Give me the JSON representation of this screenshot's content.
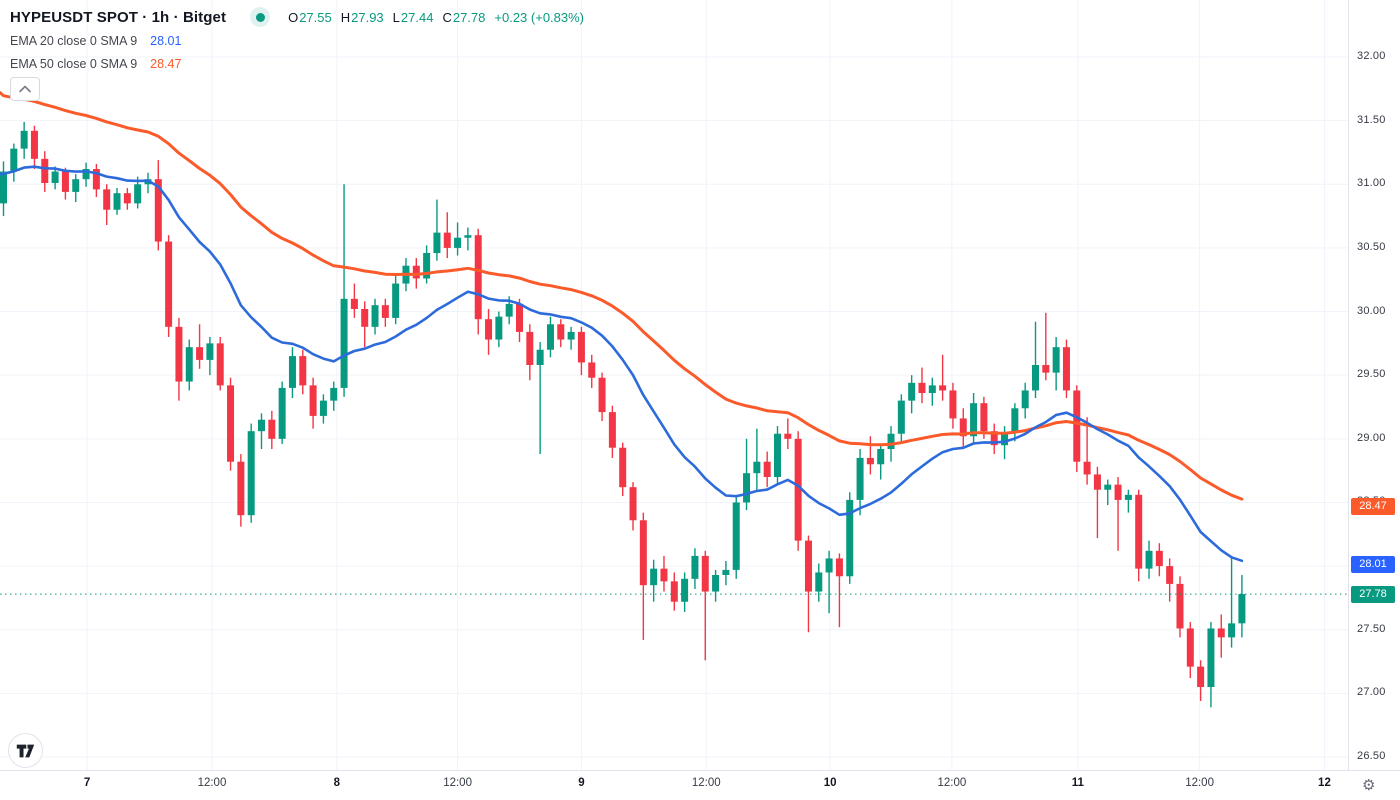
{
  "header": {
    "title": "HYPEUSDT SPOT · 1h · Bitget",
    "ohlc": {
      "o_label": "O",
      "o": "27.55",
      "h_label": "H",
      "h": "27.93",
      "l_label": "L",
      "l": "27.44",
      "c_label": "C",
      "c": "27.78",
      "change": "+0.23 (+0.83%)"
    }
  },
  "indicators": [
    {
      "label": "EMA 20 close 0 SMA 9",
      "value": "28.01",
      "color": "#2962ff"
    },
    {
      "label": "EMA 50 close 0 SMA 9",
      "value": "28.47",
      "color": "#fb5a2a"
    }
  ],
  "colors": {
    "up": "#089981",
    "down": "#f23645",
    "ema_fast": "#2d6bdb",
    "ema_slow": "#fb5a2a",
    "grid": "#f0f3fa",
    "axis_border": "#e0e3eb",
    "last_price": "#089981",
    "tag_fast": "#2962ff",
    "tag_slow": "#fb5a2a"
  },
  "price_axis": {
    "labels": [
      "32.00",
      "31.50",
      "31.00",
      "30.50",
      "30.00",
      "29.50",
      "29.00",
      "28.50",
      "28.00",
      "27.50",
      "27.00",
      "26.50"
    ],
    "tags": [
      {
        "text": "28.47",
        "price": 28.47,
        "color": "#fb5a2a",
        "name": "ema50-price-tag"
      },
      {
        "text": "28.01",
        "price": 28.01,
        "color": "#2962ff",
        "name": "ema20-price-tag"
      },
      {
        "text": "27.78",
        "price": 27.78,
        "color": "#089981",
        "name": "last-price-tag"
      }
    ]
  },
  "time_axis": [
    {
      "label": "7",
      "index": 8.1,
      "major": true
    },
    {
      "label": "12:00",
      "index": 20.2,
      "major": false
    },
    {
      "label": "8",
      "index": 32.3,
      "major": true
    },
    {
      "label": "12:00",
      "index": 44.0,
      "major": false
    },
    {
      "label": "9",
      "index": 56.0,
      "major": true
    },
    {
      "label": "12:00",
      "index": 68.1,
      "major": false
    },
    {
      "label": "10",
      "index": 80.1,
      "major": true
    },
    {
      "label": "12:00",
      "index": 91.9,
      "major": false
    },
    {
      "label": "11",
      "index": 104.1,
      "major": true
    },
    {
      "label": "12:00",
      "index": 115.9,
      "major": false
    },
    {
      "label": "12",
      "index": 128.0,
      "major": true
    }
  ],
  "chart_data": {
    "type": "candlestick",
    "symbol": "HYPEUSDT",
    "market": "SPOT",
    "interval": "1h",
    "exchange": "Bitget",
    "ylim": [
      26.5,
      32.0
    ],
    "grid": true,
    "last_price": 27.78,
    "last_candle_ohlc": {
      "open": 27.55,
      "high": 27.93,
      "low": 27.44,
      "close": 27.78
    },
    "indicators": [
      {
        "name": "EMA",
        "length": 20,
        "source": "close",
        "offset": 0,
        "smoothing": "SMA 9",
        "current": 28.01,
        "start_value": 31.08
      },
      {
        "name": "EMA",
        "length": 50,
        "source": "close",
        "offset": 0,
        "smoothing": "SMA 9",
        "current": 28.47,
        "start_value": 31.72
      }
    ],
    "candles": [
      [
        30.85,
        31.18,
        30.75,
        31.1
      ],
      [
        31.1,
        31.32,
        31.02,
        31.28
      ],
      [
        31.28,
        31.49,
        31.2,
        31.42
      ],
      [
        31.42,
        31.46,
        31.12,
        31.2
      ],
      [
        31.2,
        31.26,
        30.94,
        31.01
      ],
      [
        31.01,
        31.14,
        30.96,
        31.1
      ],
      [
        31.1,
        31.13,
        30.88,
        30.94
      ],
      [
        30.94,
        31.08,
        30.86,
        31.04
      ],
      [
        31.04,
        31.17,
        30.98,
        31.12
      ],
      [
        31.12,
        31.16,
        30.9,
        30.96
      ],
      [
        30.96,
        31.0,
        30.68,
        30.8
      ],
      [
        30.8,
        30.97,
        30.76,
        30.93
      ],
      [
        30.93,
        30.97,
        30.8,
        30.85
      ],
      [
        30.85,
        31.06,
        30.81,
        31.0
      ],
      [
        31.0,
        31.09,
        30.93,
        31.04
      ],
      [
        31.04,
        31.19,
        30.48,
        30.55
      ],
      [
        30.55,
        30.6,
        29.8,
        29.88
      ],
      [
        29.88,
        29.95,
        29.3,
        29.45
      ],
      [
        29.45,
        29.78,
        29.38,
        29.72
      ],
      [
        29.72,
        29.9,
        29.55,
        29.62
      ],
      [
        29.62,
        29.8,
        29.5,
        29.75
      ],
      [
        29.75,
        29.8,
        29.38,
        29.42
      ],
      [
        29.42,
        29.48,
        28.75,
        28.82
      ],
      [
        28.82,
        28.88,
        28.31,
        28.4
      ],
      [
        28.4,
        29.12,
        28.34,
        29.06
      ],
      [
        29.06,
        29.2,
        28.92,
        29.15
      ],
      [
        29.15,
        29.22,
        28.92,
        29.0
      ],
      [
        29.0,
        29.45,
        28.96,
        29.4
      ],
      [
        29.4,
        29.72,
        29.32,
        29.65
      ],
      [
        29.65,
        29.7,
        29.35,
        29.42
      ],
      [
        29.42,
        29.48,
        29.08,
        29.18
      ],
      [
        29.18,
        29.35,
        29.12,
        29.3
      ],
      [
        29.3,
        29.45,
        29.22,
        29.4
      ],
      [
        29.4,
        31.0,
        29.33,
        30.1
      ],
      [
        30.1,
        30.22,
        29.95,
        30.02
      ],
      [
        30.02,
        30.08,
        29.72,
        29.88
      ],
      [
        29.88,
        30.1,
        29.82,
        30.05
      ],
      [
        30.05,
        30.1,
        29.88,
        29.95
      ],
      [
        29.95,
        30.28,
        29.9,
        30.22
      ],
      [
        30.22,
        30.42,
        30.16,
        30.36
      ],
      [
        30.36,
        30.42,
        30.18,
        30.26
      ],
      [
        30.26,
        30.52,
        30.22,
        30.46
      ],
      [
        30.46,
        30.88,
        30.4,
        30.62
      ],
      [
        30.62,
        30.78,
        30.42,
        30.5
      ],
      [
        30.5,
        30.7,
        30.44,
        30.58
      ],
      [
        30.58,
        30.66,
        30.48,
        30.6
      ],
      [
        30.6,
        30.65,
        29.82,
        29.94
      ],
      [
        29.94,
        30.02,
        29.66,
        29.78
      ],
      [
        29.78,
        30.0,
        29.72,
        29.96
      ],
      [
        29.96,
        30.12,
        29.9,
        30.06
      ],
      [
        30.06,
        30.1,
        29.76,
        29.84
      ],
      [
        29.84,
        29.9,
        29.46,
        29.58
      ],
      [
        29.58,
        29.76,
        28.88,
        29.7
      ],
      [
        29.7,
        29.96,
        29.64,
        29.9
      ],
      [
        29.9,
        29.94,
        29.72,
        29.78
      ],
      [
        29.78,
        29.88,
        29.7,
        29.84
      ],
      [
        29.84,
        29.88,
        29.5,
        29.6
      ],
      [
        29.6,
        29.66,
        29.4,
        29.48
      ],
      [
        29.48,
        29.52,
        29.14,
        29.21
      ],
      [
        29.21,
        29.26,
        28.85,
        28.93
      ],
      [
        28.93,
        28.97,
        28.55,
        28.62
      ],
      [
        28.62,
        28.66,
        28.28,
        28.36
      ],
      [
        28.36,
        28.42,
        27.42,
        27.85
      ],
      [
        27.85,
        28.05,
        27.72,
        27.98
      ],
      [
        27.98,
        28.08,
        27.8,
        27.88
      ],
      [
        27.88,
        27.95,
        27.65,
        27.72
      ],
      [
        27.72,
        27.95,
        27.64,
        27.9
      ],
      [
        27.9,
        28.14,
        27.82,
        28.08
      ],
      [
        28.08,
        28.12,
        27.26,
        27.8
      ],
      [
        27.8,
        27.97,
        27.72,
        27.93
      ],
      [
        27.93,
        28.04,
        27.85,
        27.97
      ],
      [
        27.97,
        28.55,
        27.9,
        28.5
      ],
      [
        28.5,
        29.0,
        28.44,
        28.73
      ],
      [
        28.73,
        29.08,
        28.6,
        28.82
      ],
      [
        28.82,
        28.9,
        28.62,
        28.7
      ],
      [
        28.7,
        29.1,
        28.64,
        29.04
      ],
      [
        29.04,
        29.16,
        28.92,
        29.0
      ],
      [
        29.0,
        29.06,
        28.12,
        28.2
      ],
      [
        28.2,
        28.24,
        27.48,
        27.8
      ],
      [
        27.8,
        28.02,
        27.72,
        27.95
      ],
      [
        27.95,
        28.12,
        27.63,
        28.06
      ],
      [
        28.06,
        28.1,
        27.52,
        27.92
      ],
      [
        27.92,
        28.58,
        27.86,
        28.52
      ],
      [
        28.52,
        28.92,
        28.4,
        28.85
      ],
      [
        28.85,
        29.02,
        28.72,
        28.8
      ],
      [
        28.8,
        28.96,
        28.68,
        28.92
      ],
      [
        28.92,
        29.1,
        28.82,
        29.04
      ],
      [
        29.04,
        29.35,
        28.98,
        29.3
      ],
      [
        29.3,
        29.5,
        29.2,
        29.44
      ],
      [
        29.44,
        29.56,
        29.28,
        29.36
      ],
      [
        29.36,
        29.48,
        29.26,
        29.42
      ],
      [
        29.42,
        29.66,
        29.3,
        29.38
      ],
      [
        29.38,
        29.44,
        29.08,
        29.16
      ],
      [
        29.16,
        29.24,
        28.94,
        29.02
      ],
      [
        29.02,
        29.36,
        28.96,
        29.28
      ],
      [
        29.28,
        29.33,
        29.0,
        29.06
      ],
      [
        29.06,
        29.12,
        28.88,
        28.95
      ],
      [
        28.95,
        29.1,
        28.84,
        29.05
      ],
      [
        29.05,
        29.28,
        28.98,
        29.24
      ],
      [
        29.24,
        29.44,
        29.16,
        29.38
      ],
      [
        29.38,
        29.92,
        29.32,
        29.58
      ],
      [
        29.58,
        29.99,
        29.46,
        29.52
      ],
      [
        29.52,
        29.8,
        29.38,
        29.72
      ],
      [
        29.72,
        29.78,
        29.32,
        29.38
      ],
      [
        29.38,
        29.42,
        28.74,
        28.82
      ],
      [
        28.82,
        29.17,
        28.64,
        28.72
      ],
      [
        28.72,
        28.78,
        28.22,
        28.6
      ],
      [
        28.6,
        28.68,
        28.48,
        28.64
      ],
      [
        28.64,
        28.7,
        28.12,
        28.52
      ],
      [
        28.52,
        28.6,
        28.42,
        28.56
      ],
      [
        28.56,
        28.6,
        27.88,
        27.98
      ],
      [
        27.98,
        28.2,
        27.9,
        28.12
      ],
      [
        28.12,
        28.18,
        27.92,
        28.0
      ],
      [
        28.0,
        28.06,
        27.72,
        27.86
      ],
      [
        27.86,
        27.92,
        27.44,
        27.51
      ],
      [
        27.51,
        27.56,
        27.12,
        27.21
      ],
      [
        27.21,
        27.26,
        26.94,
        27.05
      ],
      [
        27.05,
        27.56,
        26.89,
        27.51
      ],
      [
        27.51,
        27.62,
        27.28,
        27.44
      ],
      [
        27.44,
        28.08,
        27.36,
        27.55
      ],
      [
        27.55,
        27.93,
        27.44,
        27.78
      ]
    ]
  }
}
